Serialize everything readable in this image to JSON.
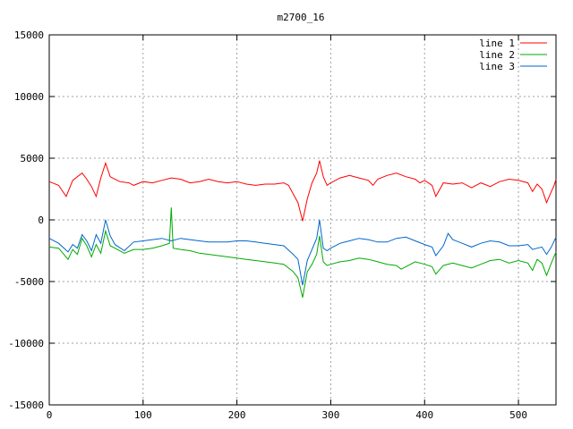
{
  "chart_data": {
    "type": "line",
    "title": "m2700_16",
    "xlabel": "",
    "ylabel": "",
    "xlim": [
      0,
      540
    ],
    "ylim": [
      -15000,
      15000
    ],
    "xticks": [
      0,
      100,
      200,
      300,
      400,
      500
    ],
    "yticks": [
      -15000,
      -10000,
      -5000,
      0,
      5000,
      10000,
      15000
    ],
    "grid": true,
    "legend_position": "top-right",
    "series": [
      {
        "name": "line 1",
        "color": "#ff0000",
        "points": [
          [
            0,
            3100
          ],
          [
            10,
            2800
          ],
          [
            18,
            1900
          ],
          [
            25,
            3200
          ],
          [
            35,
            3800
          ],
          [
            40,
            3300
          ],
          [
            45,
            2700
          ],
          [
            50,
            1900
          ],
          [
            55,
            3400
          ],
          [
            60,
            4600
          ],
          [
            65,
            3500
          ],
          [
            75,
            3100
          ],
          [
            85,
            3000
          ],
          [
            90,
            2800
          ],
          [
            100,
            3100
          ],
          [
            110,
            3000
          ],
          [
            120,
            3200
          ],
          [
            130,
            3400
          ],
          [
            140,
            3300
          ],
          [
            150,
            3000
          ],
          [
            160,
            3100
          ],
          [
            170,
            3300
          ],
          [
            180,
            3100
          ],
          [
            190,
            3000
          ],
          [
            200,
            3100
          ],
          [
            210,
            2900
          ],
          [
            220,
            2800
          ],
          [
            230,
            2900
          ],
          [
            240,
            2900
          ],
          [
            250,
            3000
          ],
          [
            255,
            2800
          ],
          [
            260,
            2100
          ],
          [
            265,
            1400
          ],
          [
            270,
            -100
          ],
          [
            275,
            1700
          ],
          [
            280,
            3000
          ],
          [
            285,
            3800
          ],
          [
            288,
            4800
          ],
          [
            292,
            3500
          ],
          [
            296,
            2800
          ],
          [
            300,
            3000
          ],
          [
            310,
            3400
          ],
          [
            320,
            3600
          ],
          [
            330,
            3400
          ],
          [
            340,
            3200
          ],
          [
            345,
            2800
          ],
          [
            350,
            3300
          ],
          [
            360,
            3600
          ],
          [
            370,
            3800
          ],
          [
            380,
            3500
          ],
          [
            390,
            3300
          ],
          [
            395,
            3000
          ],
          [
            400,
            3200
          ],
          [
            408,
            2800
          ],
          [
            412,
            1900
          ],
          [
            420,
            3000
          ],
          [
            430,
            2900
          ],
          [
            440,
            3000
          ],
          [
            450,
            2600
          ],
          [
            460,
            3000
          ],
          [
            470,
            2700
          ],
          [
            480,
            3100
          ],
          [
            490,
            3300
          ],
          [
            500,
            3200
          ],
          [
            510,
            3000
          ],
          [
            515,
            2300
          ],
          [
            520,
            2900
          ],
          [
            525,
            2500
          ],
          [
            530,
            1400
          ],
          [
            535,
            2300
          ],
          [
            538,
            2800
          ],
          [
            540,
            3300
          ]
        ]
      },
      {
        "name": "line 2",
        "color": "#00aa00",
        "points": [
          [
            0,
            -2200
          ],
          [
            10,
            -2300
          ],
          [
            20,
            -3200
          ],
          [
            25,
            -2400
          ],
          [
            30,
            -2800
          ],
          [
            35,
            -1500
          ],
          [
            40,
            -2100
          ],
          [
            45,
            -3000
          ],
          [
            50,
            -2000
          ],
          [
            55,
            -2700
          ],
          [
            60,
            -900
          ],
          [
            65,
            -2100
          ],
          [
            70,
            -2300
          ],
          [
            80,
            -2700
          ],
          [
            90,
            -2400
          ],
          [
            100,
            -2400
          ],
          [
            110,
            -2300
          ],
          [
            120,
            -2100
          ],
          [
            128,
            -1900
          ],
          [
            130,
            1000
          ],
          [
            132,
            -2300
          ],
          [
            140,
            -2400
          ],
          [
            150,
            -2500
          ],
          [
            160,
            -2700
          ],
          [
            170,
            -2800
          ],
          [
            180,
            -2900
          ],
          [
            190,
            -3000
          ],
          [
            200,
            -3100
          ],
          [
            210,
            -3200
          ],
          [
            220,
            -3300
          ],
          [
            230,
            -3400
          ],
          [
            240,
            -3500
          ],
          [
            250,
            -3600
          ],
          [
            260,
            -4200
          ],
          [
            265,
            -4700
          ],
          [
            270,
            -6300
          ],
          [
            275,
            -4200
          ],
          [
            280,
            -3600
          ],
          [
            285,
            -2800
          ],
          [
            288,
            -1300
          ],
          [
            292,
            -3400
          ],
          [
            296,
            -3700
          ],
          [
            300,
            -3600
          ],
          [
            310,
            -3400
          ],
          [
            320,
            -3300
          ],
          [
            330,
            -3100
          ],
          [
            340,
            -3200
          ],
          [
            350,
            -3400
          ],
          [
            360,
            -3600
          ],
          [
            370,
            -3700
          ],
          [
            375,
            -4000
          ],
          [
            380,
            -3800
          ],
          [
            390,
            -3400
          ],
          [
            400,
            -3600
          ],
          [
            408,
            -3800
          ],
          [
            412,
            -4400
          ],
          [
            420,
            -3700
          ],
          [
            430,
            -3500
          ],
          [
            440,
            -3700
          ],
          [
            450,
            -3900
          ],
          [
            460,
            -3600
          ],
          [
            470,
            -3300
          ],
          [
            480,
            -3200
          ],
          [
            490,
            -3500
          ],
          [
            500,
            -3300
          ],
          [
            510,
            -3500
          ],
          [
            515,
            -4100
          ],
          [
            520,
            -3200
          ],
          [
            525,
            -3500
          ],
          [
            530,
            -4500
          ],
          [
            535,
            -3500
          ],
          [
            540,
            -2600
          ]
        ]
      },
      {
        "name": "line 3",
        "color": "#0066cc",
        "points": [
          [
            0,
            -1500
          ],
          [
            10,
            -1900
          ],
          [
            20,
            -2600
          ],
          [
            25,
            -2000
          ],
          [
            30,
            -2300
          ],
          [
            35,
            -1200
          ],
          [
            40,
            -1700
          ],
          [
            45,
            -2500
          ],
          [
            50,
            -1200
          ],
          [
            55,
            -1900
          ],
          [
            60,
            0
          ],
          [
            65,
            -1300
          ],
          [
            70,
            -2000
          ],
          [
            80,
            -2500
          ],
          [
            90,
            -1800
          ],
          [
            100,
            -1700
          ],
          [
            110,
            -1600
          ],
          [
            120,
            -1500
          ],
          [
            130,
            -1700
          ],
          [
            140,
            -1500
          ],
          [
            150,
            -1600
          ],
          [
            160,
            -1700
          ],
          [
            170,
            -1800
          ],
          [
            180,
            -1800
          ],
          [
            190,
            -1800
          ],
          [
            200,
            -1700
          ],
          [
            210,
            -1700
          ],
          [
            220,
            -1800
          ],
          [
            230,
            -1900
          ],
          [
            240,
            -2000
          ],
          [
            250,
            -2100
          ],
          [
            260,
            -2800
          ],
          [
            265,
            -3200
          ],
          [
            270,
            -5300
          ],
          [
            275,
            -3300
          ],
          [
            280,
            -2400
          ],
          [
            285,
            -1500
          ],
          [
            288,
            0
          ],
          [
            292,
            -2300
          ],
          [
            296,
            -2500
          ],
          [
            300,
            -2300
          ],
          [
            310,
            -1900
          ],
          [
            320,
            -1700
          ],
          [
            330,
            -1500
          ],
          [
            340,
            -1600
          ],
          [
            350,
            -1800
          ],
          [
            360,
            -1800
          ],
          [
            370,
            -1500
          ],
          [
            380,
            -1400
          ],
          [
            390,
            -1700
          ],
          [
            400,
            -2000
          ],
          [
            408,
            -2200
          ],
          [
            412,
            -2900
          ],
          [
            420,
            -2100
          ],
          [
            425,
            -1100
          ],
          [
            430,
            -1600
          ],
          [
            440,
            -1900
          ],
          [
            450,
            -2200
          ],
          [
            460,
            -1900
          ],
          [
            470,
            -1700
          ],
          [
            480,
            -1800
          ],
          [
            490,
            -2100
          ],
          [
            500,
            -2100
          ],
          [
            510,
            -2000
          ],
          [
            515,
            -2400
          ],
          [
            520,
            -2300
          ],
          [
            525,
            -2200
          ],
          [
            530,
            -2800
          ],
          [
            535,
            -2200
          ],
          [
            540,
            -1400
          ]
        ]
      }
    ]
  }
}
